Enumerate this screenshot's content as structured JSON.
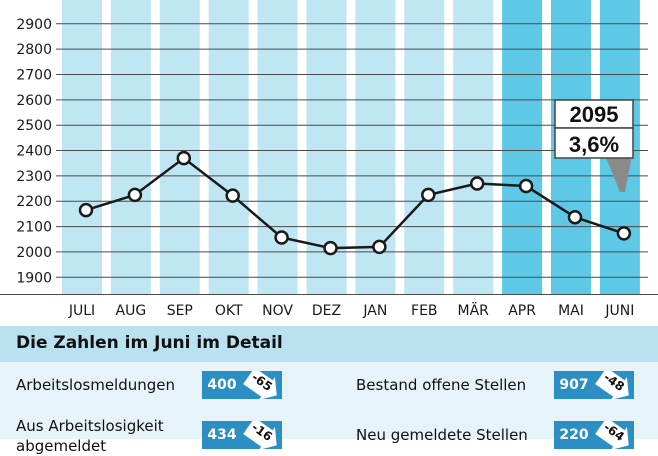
{
  "chart_data": {
    "type": "bar",
    "categories": [
      "JULI",
      "AUG",
      "SEP",
      "OKT",
      "NOV",
      "DEZ",
      "JAN",
      "FEB",
      "MÄR",
      "APR",
      "MAI",
      "JUNI"
    ],
    "highlight_from_index": 9,
    "values": [
      2165,
      2225,
      2370,
      2222,
      2057,
      2015,
      2020,
      2225,
      2270,
      2260,
      2137,
      2073
    ],
    "y_ticks": [
      1900,
      2000,
      2100,
      2200,
      2300,
      2400,
      2500,
      2600,
      2700,
      2800,
      2900
    ],
    "ylim": [
      1830,
      2990
    ],
    "bar_color": "#bfe6f3",
    "highlight_color": "#5ec9e6",
    "line_color": "#1a1a1a",
    "callout": {
      "value": "2095",
      "percent": "3,6%"
    }
  },
  "detail": {
    "title": "Die Zahlen im Juni im Detail",
    "rows": [
      {
        "label": "Arbeitslosmeldungen",
        "value": "400",
        "delta": "-65"
      },
      {
        "label": "Aus Arbeitslosigkeit abgemeldet",
        "value": "434",
        "delta": "-16"
      },
      {
        "label": "Bestand offene Stellen",
        "value": "907",
        "delta": "-48"
      },
      {
        "label": "Neu gemeldete Stellen",
        "value": "220",
        "delta": "-64"
      }
    ]
  }
}
